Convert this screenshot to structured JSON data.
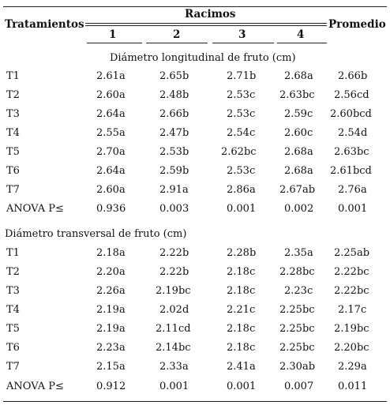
{
  "header": {
    "tratamientos": "Tratamientos",
    "racimos": "Racimos",
    "promedio": "Promedio",
    "cols": [
      "1",
      "2",
      "3",
      "4"
    ]
  },
  "sections": [
    {
      "title": "Diámetro longitudinal de fruto (cm)",
      "rows": [
        {
          "label": "T1",
          "values": [
            "2.61a",
            "2.65b",
            "2.71b",
            "2.68a",
            "2.66b"
          ]
        },
        {
          "label": "T2",
          "values": [
            "2.60a",
            "2.48b",
            "2.53c",
            "2.63bc",
            "2.56cd"
          ]
        },
        {
          "label": "T3",
          "values": [
            "2.64a",
            "2.66b",
            "2.53c",
            "2.59c",
            "2.60bcd"
          ]
        },
        {
          "label": "T4",
          "values": [
            "2.55a",
            "2.47b",
            "2.54c",
            "2.60c",
            "2.54d"
          ]
        },
        {
          "label": "T5",
          "values": [
            "2.70a",
            "2.53b",
            "2.62bc",
            "2.68a",
            "2.63bc"
          ]
        },
        {
          "label": "T6",
          "values": [
            "2.64a",
            "2.59b",
            "2.53c",
            "2.68a",
            "2.61bcd"
          ]
        },
        {
          "label": "T7",
          "values": [
            "2.60a",
            "2.91a",
            "2.86a",
            "2.67ab",
            "2.76a"
          ]
        },
        {
          "label": "ANOVA P≤",
          "values": [
            "0.936",
            "0.003",
            "0.001",
            "0.002",
            "0.001"
          ]
        }
      ]
    },
    {
      "title": "Diámetro transversal de fruto (cm)",
      "rows": [
        {
          "label": "T1",
          "values": [
            "2.18a",
            "2.22b",
            "2.28b",
            "2.35a",
            "2.25ab"
          ]
        },
        {
          "label": "T2",
          "values": [
            "2.20a",
            "2.22b",
            "2.18c",
            "2.28bc",
            "2.22bc"
          ]
        },
        {
          "label": "T3",
          "values": [
            "2.26a",
            "2.19bc",
            "2.18c",
            "2.23c",
            "2.22bc"
          ]
        },
        {
          "label": "T4",
          "values": [
            "2.19a",
            "2.02d",
            "2.21c",
            "2.25bc",
            "2.17c"
          ]
        },
        {
          "label": "T5",
          "values": [
            "2.19a",
            "2.11cd",
            "2.18c",
            "2.25bc",
            "2.19bc"
          ]
        },
        {
          "label": "T6",
          "values": [
            "2.23a",
            "2.14bc",
            "2.18c",
            "2.25bc",
            "2.20bc"
          ]
        },
        {
          "label": "T7",
          "values": [
            "2.15a",
            "2.33a",
            "2.41a",
            "2.30ab",
            "2.29a"
          ]
        },
        {
          "label": "ANOVA P≤",
          "values": [
            "0.912",
            "0.001",
            "0.001",
            "0.007",
            "0.011"
          ]
        }
      ]
    }
  ]
}
